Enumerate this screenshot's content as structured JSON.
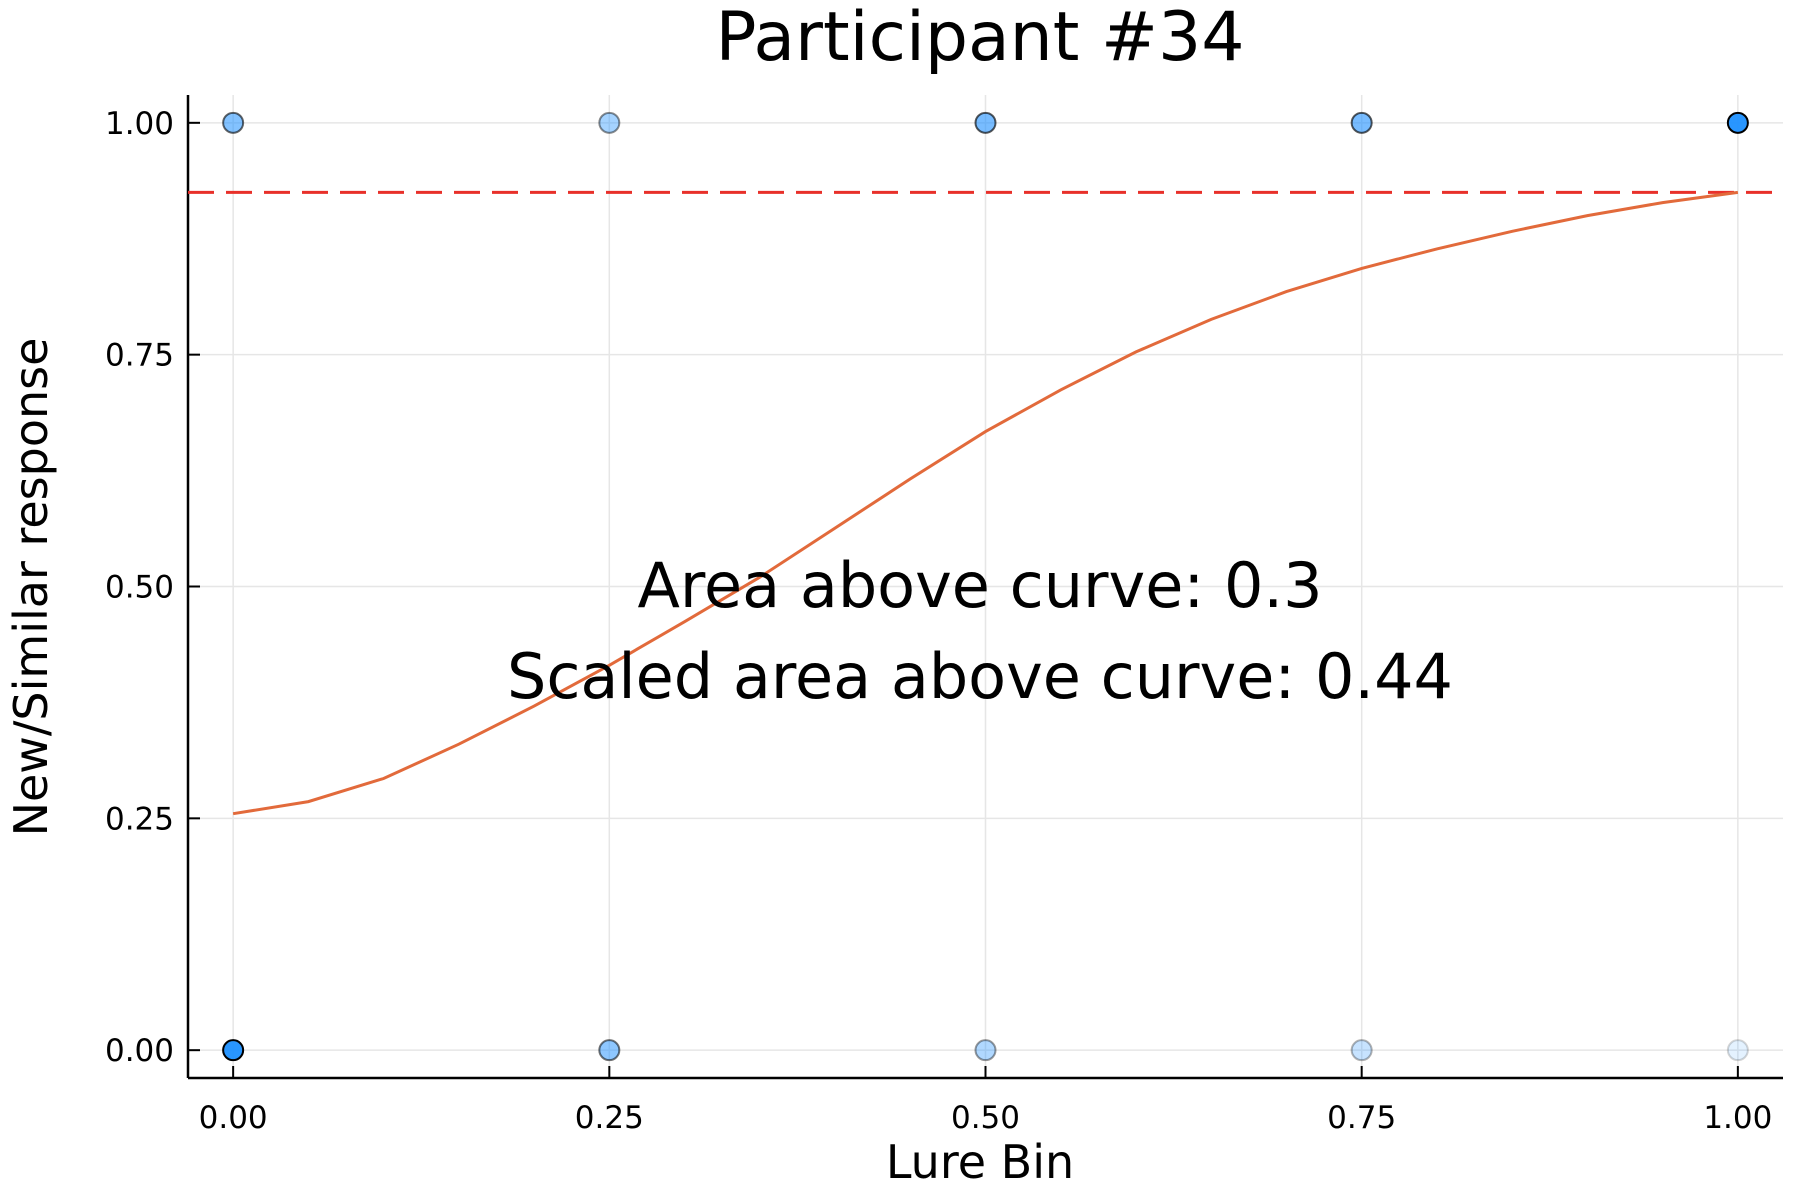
{
  "chart_data": {
    "type": "scatter",
    "title": "Participant #34",
    "xlabel": "Lure Bin",
    "ylabel": "New/Similar response",
    "xlim": [
      -0.03,
      1.03
    ],
    "ylim": [
      -0.03,
      1.03
    ],
    "xticks": [
      "0.00",
      "0.25",
      "0.50",
      "0.75",
      "1.00"
    ],
    "yticks": [
      "0.00",
      "0.25",
      "0.50",
      "0.75",
      "1.00"
    ],
    "grid": true,
    "legend": "none",
    "points": [
      {
        "x": 0.0,
        "y": 1.0,
        "opacity": 0.55
      },
      {
        "x": 0.25,
        "y": 1.0,
        "opacity": 0.4
      },
      {
        "x": 0.5,
        "y": 1.0,
        "opacity": 0.6
      },
      {
        "x": 0.75,
        "y": 1.0,
        "opacity": 0.6
      },
      {
        "x": 1.0,
        "y": 1.0,
        "opacity": 0.95
      },
      {
        "x": 0.0,
        "y": 0.0,
        "opacity": 0.95
      },
      {
        "x": 0.25,
        "y": 0.0,
        "opacity": 0.5
      },
      {
        "x": 0.5,
        "y": 0.0,
        "opacity": 0.35
      },
      {
        "x": 0.75,
        "y": 0.0,
        "opacity": 0.25
      },
      {
        "x": 1.0,
        "y": 0.0,
        "opacity": 0.12
      }
    ],
    "curve": {
      "x": [
        0.0,
        0.05,
        0.1,
        0.15,
        0.2,
        0.25,
        0.3,
        0.35,
        0.4,
        0.45,
        0.5,
        0.55,
        0.6,
        0.65,
        0.7,
        0.75,
        0.8,
        0.85,
        0.9,
        0.95,
        1.0
      ],
      "y": [
        0.255,
        0.268,
        0.293,
        0.33,
        0.371,
        0.415,
        0.462,
        0.51,
        0.563,
        0.616,
        0.667,
        0.712,
        0.753,
        0.788,
        0.818,
        0.843,
        0.864,
        0.883,
        0.9,
        0.914,
        0.925
      ],
      "color": "#e26a3b"
    },
    "hline": {
      "y": 0.925,
      "color": "#e8302a",
      "style": "dashed"
    },
    "marker_color": "#1e90ff",
    "annotations": [
      "Area above curve: 0.3",
      "Scaled area above curve: 0.44"
    ]
  }
}
